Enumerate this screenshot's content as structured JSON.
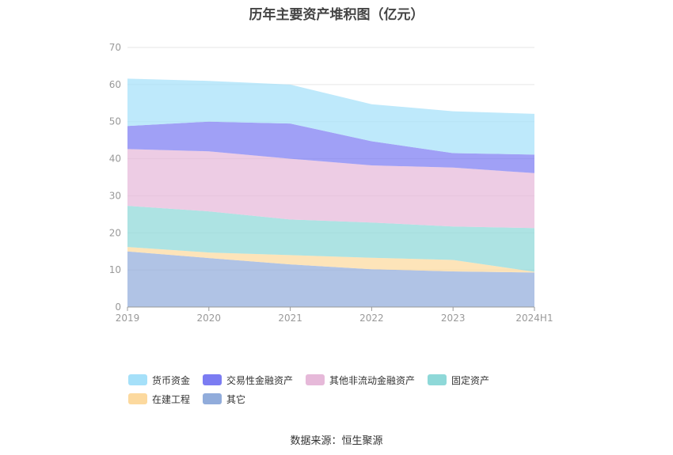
{
  "title": "历年主要资产堆积图（亿元）",
  "source": "数据来源：恒生聚源",
  "chart_data": {
    "type": "area",
    "stacked": true,
    "categories": [
      "2019",
      "2020",
      "2021",
      "2022",
      "2023",
      "2024H1"
    ],
    "ylim": [
      0,
      70
    ],
    "yticks": [
      0,
      10,
      20,
      30,
      40,
      50,
      60,
      70
    ],
    "grid": true,
    "legend_position": "bottom",
    "series": [
      {
        "name": "其它",
        "color": "#91acdb",
        "values": [
          15.0,
          13.2,
          11.5,
          10.2,
          9.6,
          9.3
        ]
      },
      {
        "name": "在建工程",
        "color": "#fcd99e",
        "values": [
          1.2,
          1.5,
          2.5,
          3.1,
          3.1,
          0.2
        ]
      },
      {
        "name": "固定资产",
        "color": "#8ed8d8",
        "values": [
          11.1,
          11.1,
          9.6,
          9.5,
          9.0,
          11.8
        ]
      },
      {
        "name": "其他非流动金融资产",
        "color": "#e6b9d9",
        "values": [
          15.3,
          16.2,
          16.4,
          15.4,
          15.9,
          14.8
        ]
      },
      {
        "name": "交易性金融资产",
        "color": "#7b7cf2",
        "values": [
          6.2,
          8.0,
          9.5,
          6.5,
          3.9,
          5.0
        ]
      },
      {
        "name": "货币资金",
        "color": "#a5e0f9",
        "values": [
          12.8,
          11.0,
          10.5,
          10.0,
          11.3,
          11.0
        ]
      }
    ]
  }
}
